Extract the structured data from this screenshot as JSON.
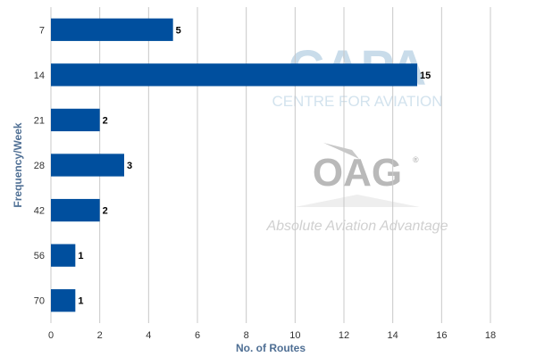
{
  "chart_data": {
    "type": "bar",
    "orientation": "horizontal",
    "categories": [
      "7",
      "14",
      "21",
      "28",
      "42",
      "56",
      "70"
    ],
    "values": [
      5,
      15,
      2,
      3,
      2,
      1,
      1
    ],
    "xlabel": "No. of Routes",
    "ylabel": "Frequency/Week",
    "xlim": [
      0,
      18
    ],
    "xticks": [
      0,
      2,
      4,
      6,
      8,
      10,
      12,
      14,
      16,
      18
    ],
    "grid": "vertical",
    "data_labels": true,
    "bar_color": "#004f9e"
  },
  "watermarks": {
    "capa_logo": "CAPA",
    "capa_subtitle": "CENTRE FOR AVIATION",
    "oag_logo": "OAG",
    "oag_registered": "®",
    "oag_tagline": "Absolute Aviation Advantage"
  },
  "colors": {
    "axis_title": "#4f6f94",
    "grid": "#c8c8c8"
  }
}
